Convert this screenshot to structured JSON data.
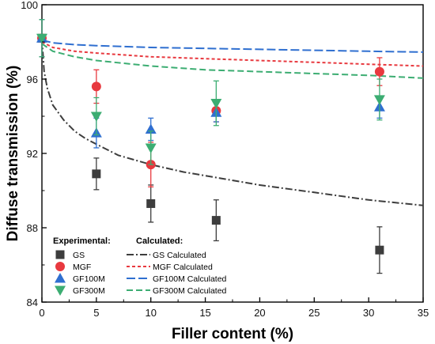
{
  "chart_data": {
    "type": "scatter",
    "xlabel": "Filler content (%)",
    "ylabel": "Diffuse transmission (%)",
    "xlim": [
      0,
      35
    ],
    "ylim": [
      84,
      100
    ],
    "xticks": [
      0,
      5,
      10,
      15,
      20,
      25,
      30,
      35
    ],
    "yticks": [
      84,
      88,
      92,
      96,
      100
    ],
    "grid": false,
    "legend": {
      "placement": "bottom-left",
      "experimental_header": "Experimental:",
      "calculated_header": "Calculated:"
    },
    "experimental_series": [
      {
        "name": "GS",
        "color": "#3d3d3d",
        "marker": "square",
        "x": [
          0,
          5,
          10,
          16,
          31
        ],
        "y": [
          98.2,
          90.9,
          89.3,
          88.4,
          86.8
        ],
        "err": [
          1.0,
          0.85,
          1.0,
          1.1,
          1.25
        ]
      },
      {
        "name": "MGF",
        "color": "#e8393f",
        "marker": "circle",
        "x": [
          0,
          5,
          10,
          16,
          31
        ],
        "y": [
          98.2,
          95.6,
          91.4,
          94.3,
          96.4
        ],
        "err": [
          1.0,
          0.9,
          1.2,
          0.6,
          0.75
        ]
      },
      {
        "name": "GF100M",
        "color": "#2f6fd0",
        "marker": "triangle-up",
        "x": [
          0,
          5,
          10,
          16,
          31
        ],
        "y": [
          98.2,
          93.1,
          93.3,
          94.2,
          94.5
        ],
        "err": [
          1.0,
          0.8,
          0.6,
          0.5,
          0.6
        ]
      },
      {
        "name": "GF300M",
        "color": "#3cad72",
        "marker": "triangle-down",
        "x": [
          0,
          5,
          10,
          16,
          31
        ],
        "y": [
          98.2,
          94.0,
          92.3,
          94.7,
          94.9
        ],
        "err": [
          1.0,
          1.0,
          0.9,
          1.2,
          1.1
        ]
      }
    ],
    "calculated_series": [
      {
        "name": "GS Calculated",
        "color": "#3d3d3d",
        "dash": "dashdot",
        "x": [
          0,
          0.2,
          0.5,
          1,
          2,
          3,
          4,
          5,
          7,
          10,
          13,
          16,
          20,
          25,
          30,
          35
        ],
        "y": [
          98.2,
          96.4,
          95.5,
          94.6,
          93.8,
          93.2,
          92.8,
          92.5,
          91.9,
          91.4,
          91.0,
          90.7,
          90.3,
          89.9,
          89.5,
          89.2
        ]
      },
      {
        "name": "MGF Calculated",
        "color": "#e8393f",
        "dash": "short",
        "x": [
          0,
          1,
          3,
          5,
          10,
          15,
          20,
          25,
          30,
          35
        ],
        "y": [
          98.0,
          97.7,
          97.5,
          97.4,
          97.2,
          97.1,
          97.0,
          96.9,
          96.8,
          96.7
        ]
      },
      {
        "name": "GF100M Calculated",
        "color": "#2f6fd0",
        "dash": "long",
        "x": [
          0,
          1,
          3,
          5,
          10,
          15,
          20,
          25,
          30,
          35
        ],
        "y": [
          98.1,
          97.95,
          97.85,
          97.8,
          97.7,
          97.65,
          97.6,
          97.55,
          97.5,
          97.45
        ]
      },
      {
        "name": "GF300M Calculated",
        "color": "#3cad72",
        "dash": "medium",
        "x": [
          0,
          1,
          3,
          5,
          10,
          15,
          20,
          25,
          30,
          35
        ],
        "y": [
          97.9,
          97.5,
          97.2,
          97.0,
          96.7,
          96.5,
          96.4,
          96.3,
          96.2,
          96.05
        ]
      }
    ]
  }
}
